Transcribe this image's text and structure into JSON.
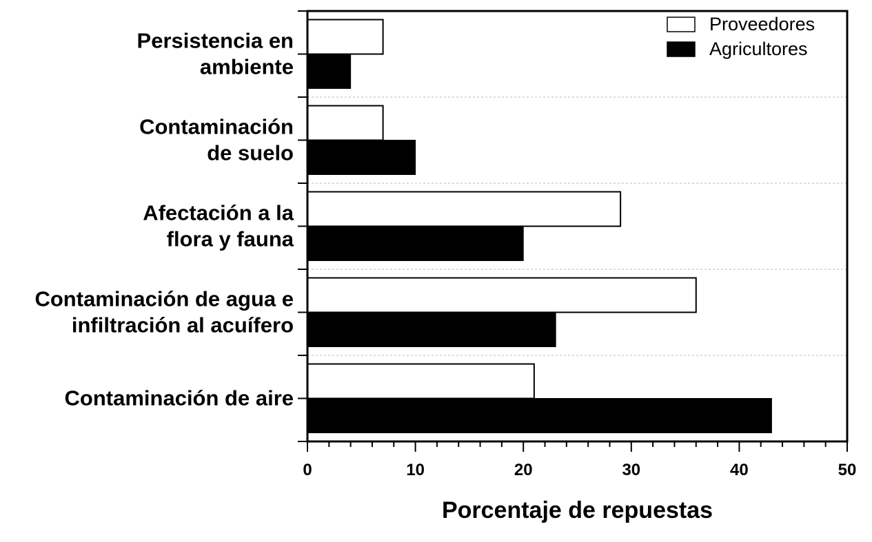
{
  "chart_data": {
    "type": "bar",
    "orientation": "horizontal",
    "categories": [
      [
        "Persistencia en",
        "ambiente"
      ],
      [
        "Contaminación",
        "de suelo"
      ],
      [
        "Afectación a la",
        "flora y fauna"
      ],
      [
        "Contaminación de agua e",
        "infiltración al acuífero"
      ],
      [
        "Contaminación de aire"
      ]
    ],
    "series": [
      {
        "name": "Proveedores",
        "values": [
          7,
          7,
          29,
          36,
          21
        ],
        "color": "#ffffff"
      },
      {
        "name": "Agricultores",
        "values": [
          4,
          10,
          20,
          23,
          43
        ],
        "color": "#000000"
      }
    ],
    "xlabel": "Porcentaje de repuestas",
    "xlim": [
      0,
      50
    ],
    "xticks": [
      0,
      10,
      20,
      30,
      40,
      50
    ],
    "grid": "horizontal-dotted",
    "legend": "top-right"
  }
}
